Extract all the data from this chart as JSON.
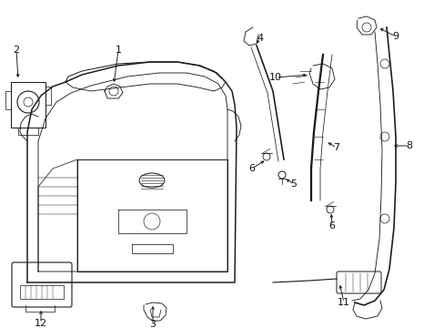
{
  "bg_color": "#ffffff",
  "fig_width": 4.89,
  "fig_height": 3.6,
  "dpi": 100,
  "line_color": "#1a1a1a",
  "text_color": "#111111",
  "label_fontsize": 8.0
}
